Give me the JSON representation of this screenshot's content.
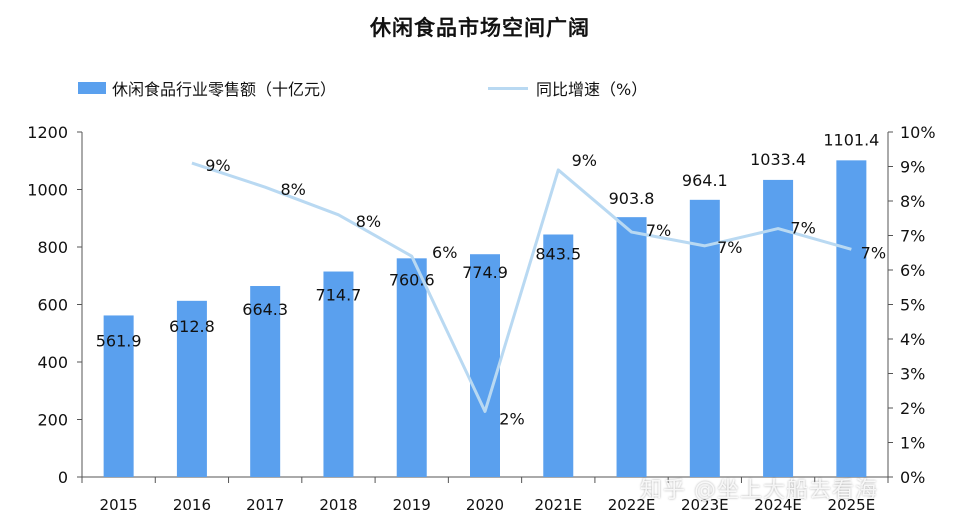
{
  "chart_data": {
    "type": "bar+line",
    "title": "休闲食品市场空间广阔",
    "categories": [
      "2015",
      "2016",
      "2017",
      "2018",
      "2019",
      "2020",
      "2021E",
      "2022E",
      "2023E",
      "2024E",
      "2025E"
    ],
    "series": [
      {
        "name": "休闲食品行业零售额（十亿元）",
        "type": "bar",
        "axis": "left",
        "values": [
          561.9,
          612.8,
          664.3,
          714.7,
          760.6,
          774.9,
          843.5,
          903.8,
          964.1,
          1033.4,
          1101.4
        ],
        "labels": [
          "561.9",
          "612.8",
          "664.3",
          "714.7",
          "760.6",
          "774.9",
          "843.5",
          "903.8",
          "964.1",
          "1033.4",
          "1101.4"
        ]
      },
      {
        "name": "同比增速（%）",
        "type": "line",
        "axis": "right",
        "values": [
          null,
          9.1,
          8.4,
          7.6,
          6.4,
          1.9,
          8.9,
          7.1,
          6.7,
          7.2,
          6.6
        ],
        "labels": [
          "",
          "9%",
          "8%",
          "8%",
          "6%",
          "2%",
          "9%",
          "7%",
          "7%",
          "7%",
          "7%"
        ]
      }
    ],
    "y_left": {
      "min": 0,
      "max": 1200,
      "ticks": [
        "0",
        "200",
        "400",
        "600",
        "800",
        "1000",
        "1200"
      ]
    },
    "y_right": {
      "min": 0,
      "max": 10,
      "ticks": [
        "0%",
        "1%",
        "2%",
        "3%",
        "4%",
        "5%",
        "6%",
        "7%",
        "8%",
        "9%",
        "10%"
      ]
    },
    "legend_position": "top",
    "grid": false,
    "colors": {
      "bar": "#5aa0ee",
      "line": "#b9d9f2"
    }
  },
  "watermark": "知乎 @坐上大船去看海"
}
